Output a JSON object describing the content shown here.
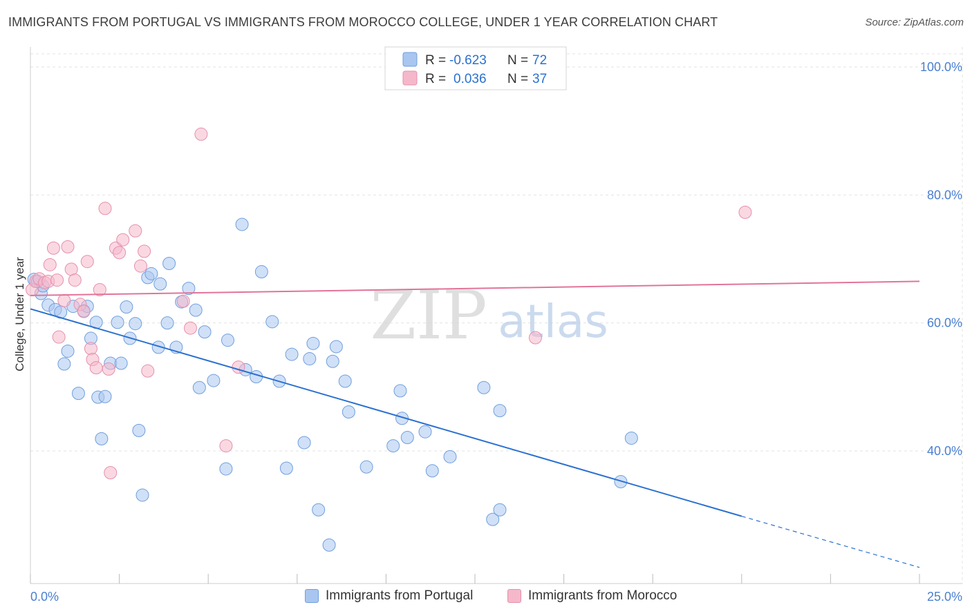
{
  "header": {
    "title": "IMMIGRANTS FROM PORTUGAL VS IMMIGRANTS FROM MOROCCO COLLEGE, UNDER 1 YEAR CORRELATION CHART",
    "source": "Source: ZipAtlas.com"
  },
  "watermark": {
    "zip": "ZIP",
    "atlas": "atlas"
  },
  "colors": {
    "blue_fill": "#a9c6f0",
    "blue_stroke": "#6f9fdd",
    "blue_line": "#2a70d0",
    "pink_fill": "#f5b8cb",
    "pink_stroke": "#e68fad",
    "pink_line": "#e2739a",
    "tick_label": "#4a7fd0"
  },
  "stats_legend": {
    "rows": [
      {
        "r_label": "R =",
        "r_value": "-0.623",
        "n_label": "N =",
        "n_value": "72",
        "series": "blue"
      },
      {
        "r_label": "R =",
        "r_value": "0.036",
        "n_label": "N =",
        "n_value": "37",
        "series": "pink"
      }
    ]
  },
  "bottom_legend": {
    "portugal": "Immigrants from Portugal",
    "morocco": "Immigrants from Morocco"
  },
  "chart_data": {
    "type": "scatter",
    "title": "IMMIGRANTS FROM PORTUGAL VS IMMIGRANTS FROM MOROCCO COLLEGE, UNDER 1 YEAR CORRELATION CHART",
    "xlabel": "",
    "ylabel": "College, Under 1 year",
    "xlim": [
      0,
      25
    ],
    "ylim": [
      20,
      102
    ],
    "x_tick_labels": [
      "0.0%",
      "25.0%"
    ],
    "y_ticks": [
      40,
      60,
      80,
      100
    ],
    "y_tick_labels": [
      "40.0%",
      "60.0%",
      "80.0%",
      "100.0%"
    ],
    "grid": true,
    "legend_position": "top-center",
    "series": [
      {
        "name": "Immigrants from Portugal",
        "color": "blue",
        "R": -0.623,
        "N": 72,
        "trend": {
          "x": [
            0,
            20
          ],
          "y": [
            62.2,
            29.8
          ],
          "dashed_to": {
            "x": 25,
            "y": 21.8
          }
        },
        "points": [
          [
            0.1,
            66.8
          ],
          [
            0.2,
            66.5
          ],
          [
            0.3,
            64.6
          ],
          [
            0.35,
            65.8
          ],
          [
            0.5,
            62.8
          ],
          [
            0.7,
            62.1
          ],
          [
            0.85,
            61.7
          ],
          [
            0.95,
            53.6
          ],
          [
            1.05,
            55.6
          ],
          [
            1.2,
            62.6
          ],
          [
            1.35,
            49.0
          ],
          [
            1.5,
            61.9
          ],
          [
            1.6,
            62.6
          ],
          [
            1.7,
            57.6
          ],
          [
            1.85,
            60.1
          ],
          [
            1.9,
            48.4
          ],
          [
            2.0,
            41.9
          ],
          [
            2.1,
            48.5
          ],
          [
            2.25,
            53.7
          ],
          [
            2.45,
            60.1
          ],
          [
            2.55,
            53.7
          ],
          [
            2.7,
            62.5
          ],
          [
            2.8,
            57.6
          ],
          [
            2.95,
            59.9
          ],
          [
            3.05,
            43.2
          ],
          [
            3.15,
            33.1
          ],
          [
            3.3,
            67.1
          ],
          [
            3.4,
            67.7
          ],
          [
            3.6,
            56.2
          ],
          [
            3.65,
            66.1
          ],
          [
            3.85,
            60.0
          ],
          [
            3.9,
            69.3
          ],
          [
            4.1,
            56.2
          ],
          [
            4.25,
            63.3
          ],
          [
            4.45,
            65.4
          ],
          [
            4.65,
            62.0
          ],
          [
            4.75,
            49.9
          ],
          [
            4.9,
            58.6
          ],
          [
            5.15,
            51.0
          ],
          [
            5.5,
            37.2
          ],
          [
            5.55,
            57.3
          ],
          [
            5.95,
            75.4
          ],
          [
            6.05,
            52.7
          ],
          [
            6.35,
            51.6
          ],
          [
            6.5,
            68.0
          ],
          [
            6.8,
            60.2
          ],
          [
            7.0,
            50.9
          ],
          [
            7.2,
            37.3
          ],
          [
            7.35,
            55.1
          ],
          [
            7.7,
            41.3
          ],
          [
            7.85,
            54.4
          ],
          [
            7.95,
            56.8
          ],
          [
            8.1,
            30.8
          ],
          [
            8.4,
            25.3
          ],
          [
            8.5,
            54.0
          ],
          [
            8.6,
            56.3
          ],
          [
            8.85,
            50.9
          ],
          [
            8.95,
            46.1
          ],
          [
            9.45,
            37.5
          ],
          [
            10.2,
            40.8
          ],
          [
            10.4,
            49.4
          ],
          [
            10.45,
            45.1
          ],
          [
            10.6,
            42.1
          ],
          [
            11.1,
            43.0
          ],
          [
            11.3,
            36.9
          ],
          [
            11.8,
            39.1
          ],
          [
            12.75,
            49.9
          ],
          [
            13.0,
            29.3
          ],
          [
            13.2,
            30.8
          ],
          [
            13.2,
            46.3
          ],
          [
            16.6,
            35.2
          ],
          [
            16.9,
            42.0
          ]
        ]
      },
      {
        "name": "Immigrants from Morocco",
        "color": "pink",
        "R": 0.036,
        "N": 37,
        "trend": {
          "x": [
            0,
            25
          ],
          "y": [
            64.3,
            66.5
          ]
        },
        "points": [
          [
            0.05,
            65.2
          ],
          [
            0.15,
            66.5
          ],
          [
            0.25,
            66.9
          ],
          [
            0.4,
            66.3
          ],
          [
            0.5,
            66.5
          ],
          [
            0.55,
            69.1
          ],
          [
            0.65,
            71.7
          ],
          [
            0.75,
            66.7
          ],
          [
            0.8,
            57.8
          ],
          [
            0.95,
            63.5
          ],
          [
            1.05,
            71.9
          ],
          [
            1.15,
            68.4
          ],
          [
            1.25,
            66.7
          ],
          [
            1.4,
            62.9
          ],
          [
            1.5,
            61.8
          ],
          [
            1.6,
            69.6
          ],
          [
            1.7,
            56.0
          ],
          [
            1.75,
            54.3
          ],
          [
            1.85,
            53.0
          ],
          [
            1.95,
            65.2
          ],
          [
            2.1,
            77.9
          ],
          [
            2.2,
            52.8
          ],
          [
            2.25,
            36.6
          ],
          [
            2.4,
            71.7
          ],
          [
            2.5,
            71.0
          ],
          [
            2.6,
            73.0
          ],
          [
            2.95,
            74.4
          ],
          [
            3.1,
            68.9
          ],
          [
            3.2,
            71.2
          ],
          [
            3.3,
            52.5
          ],
          [
            4.3,
            63.4
          ],
          [
            4.5,
            59.2
          ],
          [
            4.8,
            89.5
          ],
          [
            5.5,
            40.8
          ],
          [
            5.85,
            53.1
          ],
          [
            14.2,
            57.7
          ],
          [
            20.1,
            77.3
          ]
        ]
      }
    ]
  }
}
